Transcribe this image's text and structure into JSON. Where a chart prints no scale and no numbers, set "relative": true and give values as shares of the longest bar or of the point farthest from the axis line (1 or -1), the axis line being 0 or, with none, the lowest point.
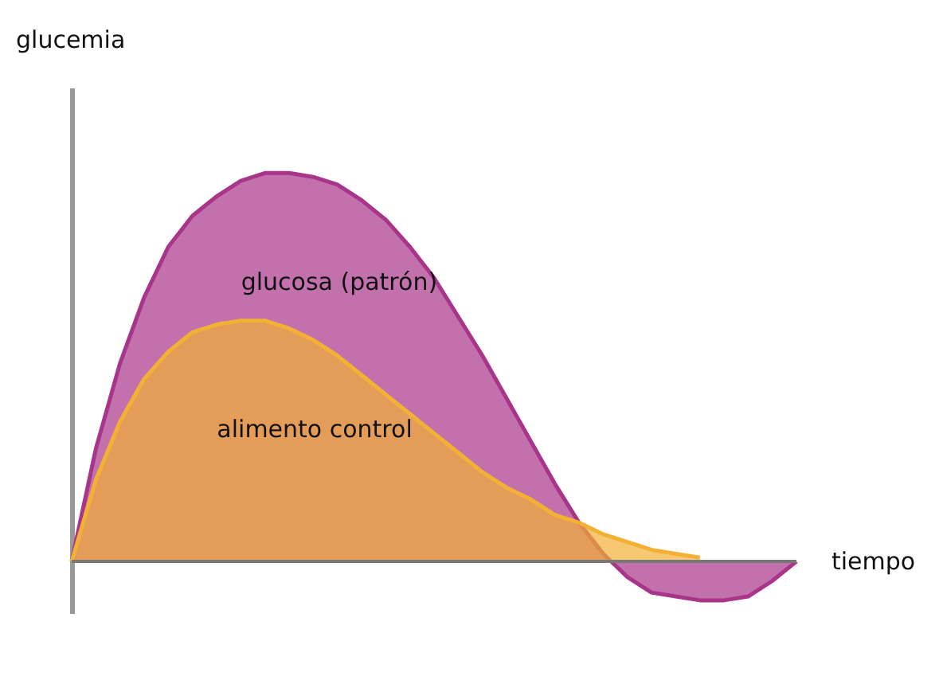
{
  "chart_data": {
    "type": "area",
    "relative": true,
    "xlabel": "tiempo",
    "ylabel": "glucemia",
    "legend": false,
    "categories": [
      null,
      null,
      null,
      null,
      null,
      null,
      null,
      null,
      null,
      null,
      null,
      null,
      null,
      null,
      null,
      null,
      null,
      null,
      null,
      null,
      null,
      null,
      null,
      null,
      null,
      null,
      null,
      null,
      null,
      null,
      null
    ],
    "series": [
      {
        "name": "glucosa (patrón)",
        "color": "#a8358a",
        "values": [
          0,
          0.29,
          0.51,
          0.68,
          0.81,
          0.89,
          0.94,
          0.98,
          1,
          1,
          0.99,
          0.97,
          0.93,
          0.88,
          0.81,
          0.73,
          0.63,
          0.53,
          0.42,
          0.31,
          0.2,
          0.1,
          0.02,
          -0.04,
          -0.08,
          -0.09,
          -0.1,
          -0.1,
          -0.09,
          -0.05,
          0
        ]
      },
      {
        "name": "alimento control",
        "color": "#f2b134",
        "values": [
          0,
          0.21,
          0.36,
          0.47,
          0.54,
          0.59,
          0.61,
          0.62,
          0.62,
          0.6,
          0.57,
          0.53,
          0.48,
          0.43,
          0.38,
          0.33,
          0.28,
          0.23,
          0.19,
          0.16,
          0.12,
          0.1,
          0.07,
          0.05,
          0.03,
          0.02,
          0.01,
          null,
          null,
          null,
          null
        ]
      }
    ]
  }
}
